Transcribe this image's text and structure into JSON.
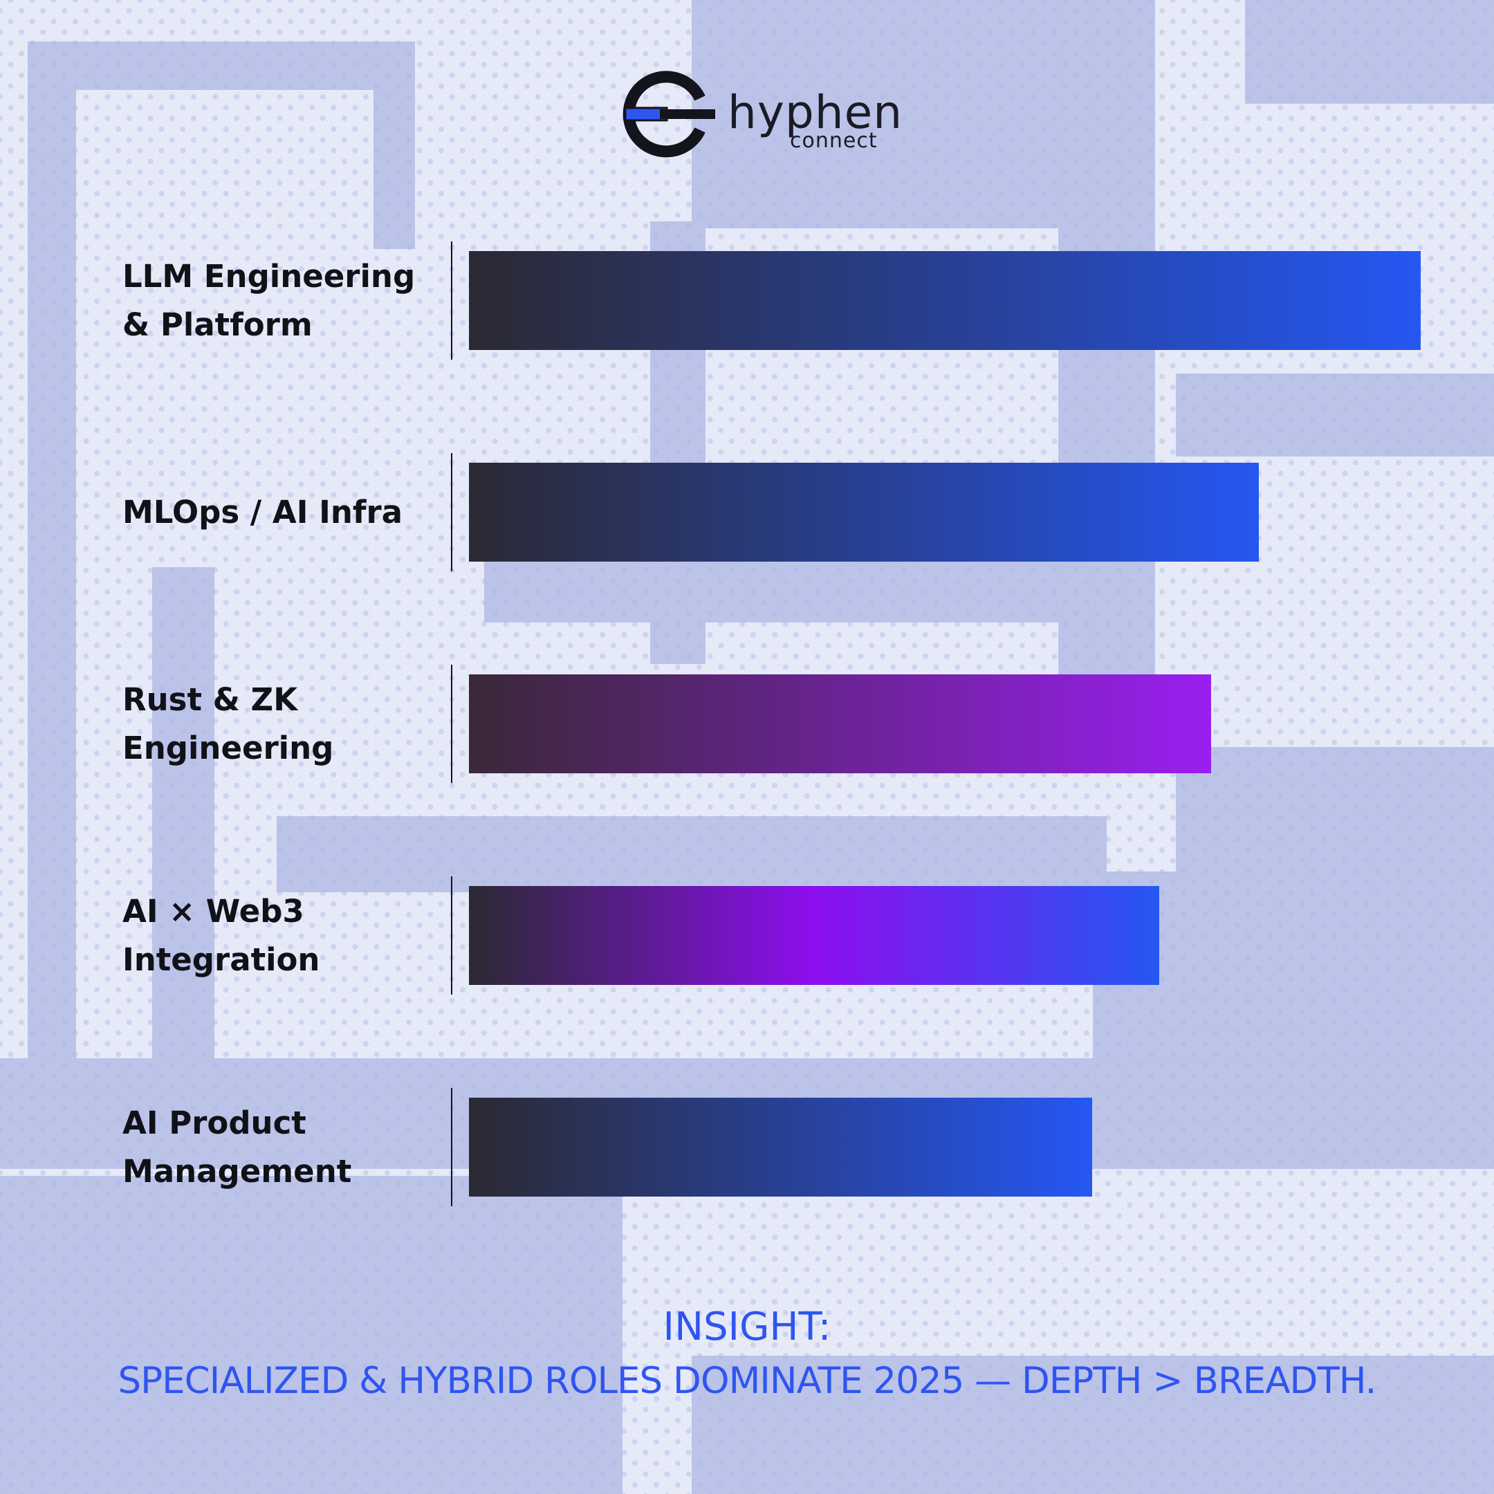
{
  "logo": {
    "word": "hyphen",
    "sub": "connect",
    "accent_color": "#2f55f0"
  },
  "chart_data": {
    "type": "bar",
    "orientation": "horizontal",
    "categories": [
      "LLM Engineering & Platform",
      "MLOps / AI Infra",
      "Rust & ZK Engineering",
      "AI × Web3 Integration",
      "AI Product Management"
    ],
    "values": [
      100,
      83,
      78,
      72.5,
      65.5
    ],
    "xlim": [
      0,
      100
    ],
    "colors": [
      [
        "#2b2933",
        "#2557f2"
      ],
      [
        "#2b2933",
        "#2557f2"
      ],
      [
        "#3a2838",
        "#9a1ff0"
      ],
      [
        "#2b2933",
        "#8d0ef0",
        "#2557f2"
      ],
      [
        "#2b2933",
        "#2557f2"
      ]
    ],
    "grid": false,
    "legend": "none"
  },
  "insight": {
    "title": "INSIGHT:",
    "text": "SPECIALIZED & HYBRID ROLES DOMINATE 2025 — DEPTH > BREADTH."
  }
}
